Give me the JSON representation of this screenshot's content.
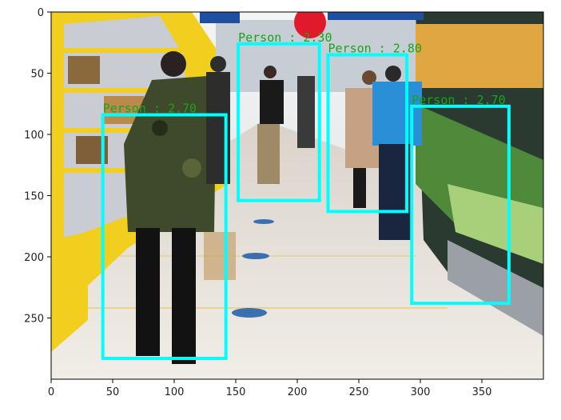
{
  "figure": {
    "type": "image-with-detections",
    "scene": "supermarket-aisle-photo",
    "colors": {
      "box": "#00ffff",
      "label": "#18a418",
      "floor": "#e9e4dc",
      "shelf_yellow": "#f2cf1f",
      "produce_green": "#4f8a3a"
    }
  },
  "axes": {
    "xlim": [
      0,
      400
    ],
    "ylim": [
      300,
      0
    ],
    "x_ticks": [
      0,
      50,
      100,
      150,
      200,
      250,
      300,
      350
    ],
    "y_ticks": [
      0,
      50,
      100,
      150,
      200,
      250
    ]
  },
  "detections": [
    {
      "label": "Person : 2.70",
      "x0": 42,
      "y0": 84,
      "x1": 142,
      "y1": 283
    },
    {
      "label": "Person : 2.30",
      "x0": 152,
      "y0": 26,
      "x1": 218,
      "y1": 154
    },
    {
      "label": "Person : 2.80",
      "x0": 225,
      "y0": 35,
      "x1": 289,
      "y1": 163
    },
    {
      "label": "Person : 2.70",
      "x0": 293,
      "y0": 77,
      "x1": 372,
      "y1": 238
    }
  ]
}
